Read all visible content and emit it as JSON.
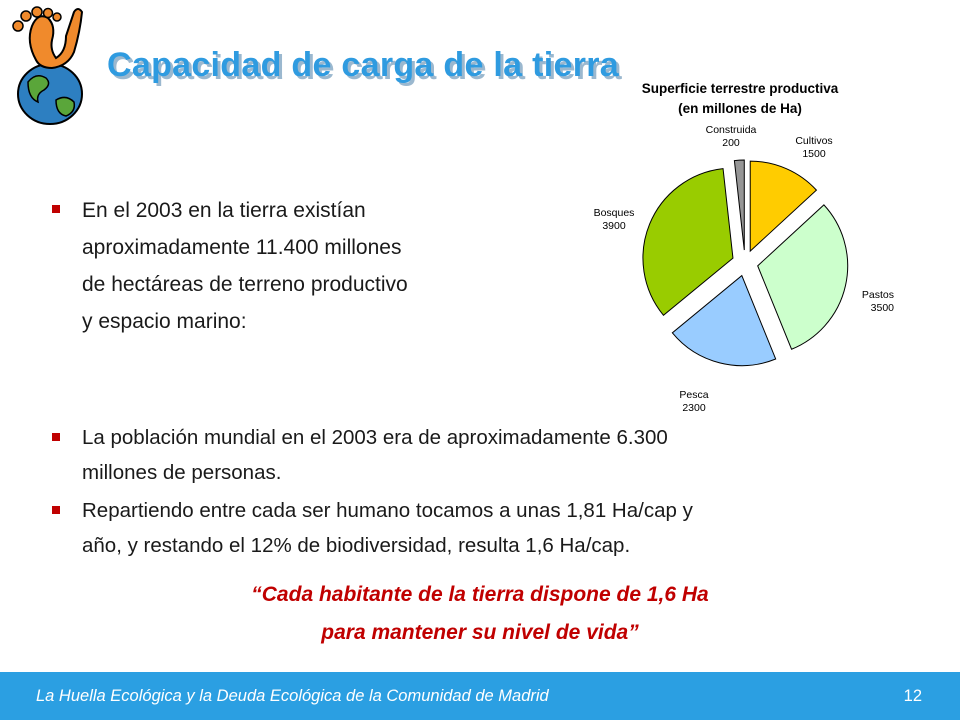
{
  "slide": {
    "title": "Capacidad de carga de la tierra",
    "logo_icon": "earth-footprint-icon",
    "bullets_top": [
      {
        "lines": [
          "En el 2003 en la tierra existían",
          "aproximadamente 11.400 millones",
          "de hectáreas de terreno productivo",
          "y espacio marino:"
        ]
      }
    ],
    "bullets_bottom": [
      {
        "lines": [
          "La población mundial en el 2003 era de aproximadamente 6.300",
          "millones de personas."
        ]
      },
      {
        "lines": [
          "Repartiendo entre cada ser humano tocamos a unas 1,81 Ha/cap y",
          "año, y restando el 12% de biodiversidad, resulta 1,6 Ha/cap."
        ]
      }
    ],
    "quote": {
      "line1": "“Cada habitante de la tierra dispone de 1,6 Ha",
      "line2": "para mantener su nivel de vida”"
    },
    "footer": {
      "text": "La Huella Ecológica y la Deuda Ecológica de la Comunidad de Madrid",
      "page_number": "12"
    },
    "colors": {
      "title": "#2f9be0",
      "accent_red": "#c00000",
      "footer_bg": "#2b9fe2"
    }
  },
  "chart_data": {
    "type": "pie",
    "title": "Superficie terrestre productiva",
    "subtitle": "(en millones de Ha)",
    "slices": [
      {
        "label": "Cultivos",
        "value": 1500,
        "color": "#ffcc00"
      },
      {
        "label": "Pastos",
        "value": 3500,
        "color": "#ccffcc"
      },
      {
        "label": "Pesca",
        "value": 2300,
        "color": "#99ccff"
      },
      {
        "label": "Bosques",
        "value": 3900,
        "color": "#99cc00"
      },
      {
        "label": "Construida",
        "value": 200,
        "color": "#969696"
      }
    ],
    "exploded": true,
    "legend": "none"
  }
}
